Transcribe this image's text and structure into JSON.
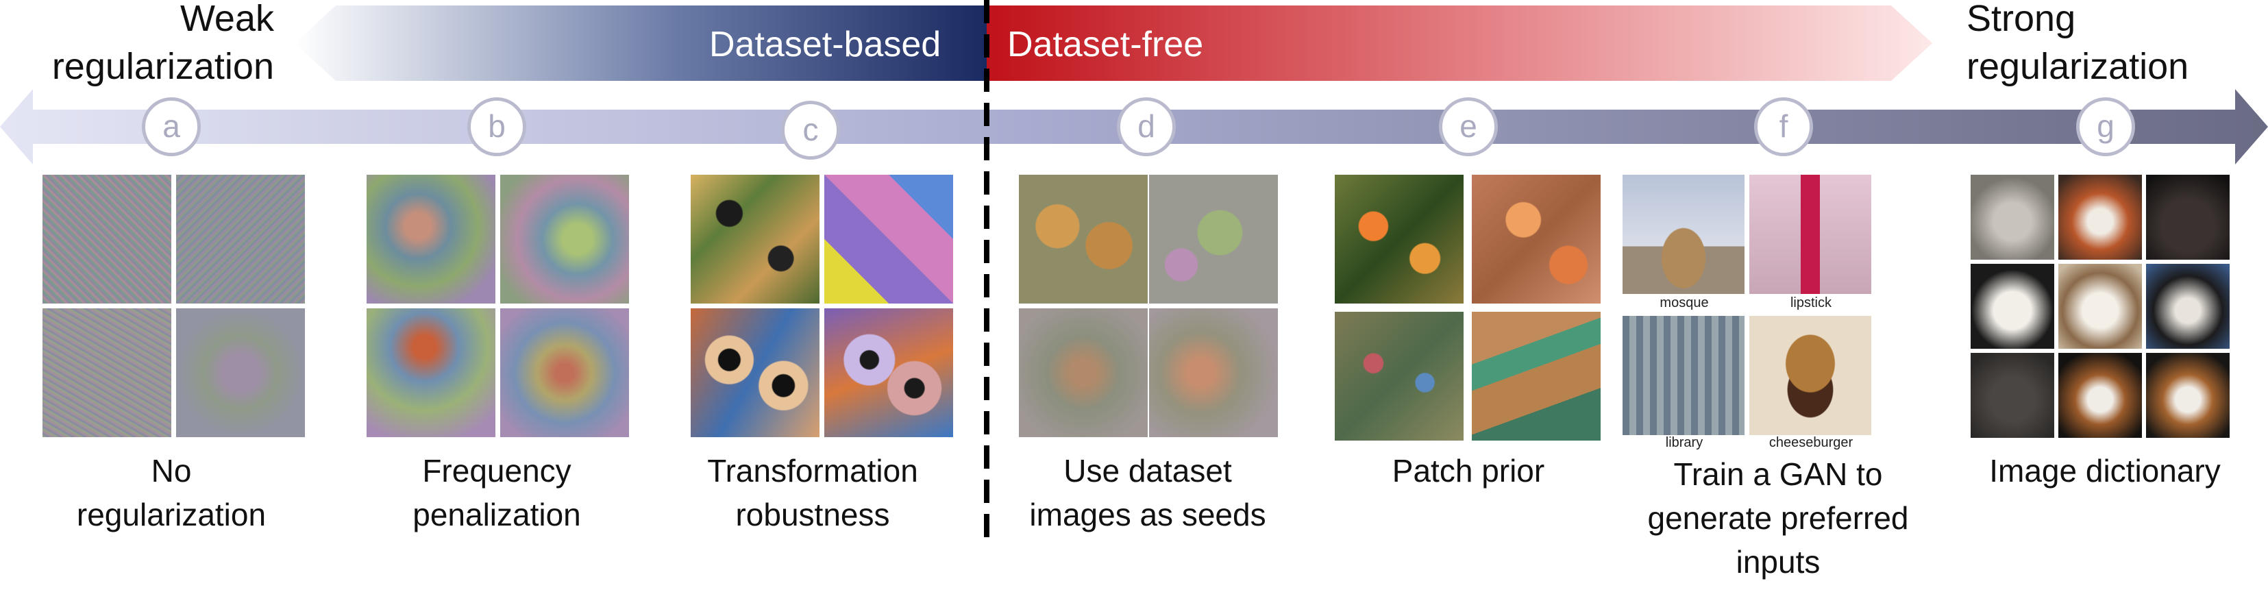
{
  "ends": {
    "weak": "Weak regularization",
    "strong": "Strong regularization"
  },
  "bands": {
    "left": "Dataset-based",
    "right": "Dataset-free"
  },
  "methods": [
    {
      "letter": "a",
      "caption": [
        "No",
        "regularization"
      ]
    },
    {
      "letter": "b",
      "caption": [
        "Frequency",
        "penalization"
      ]
    },
    {
      "letter": "c",
      "caption": [
        "Transformation",
        "robustness"
      ]
    },
    {
      "letter": "d",
      "caption": [
        "Use dataset",
        "images as seeds"
      ]
    },
    {
      "letter": "e",
      "caption": [
        "Patch prior"
      ]
    },
    {
      "letter": "f",
      "caption": [
        "Train a GAN to",
        "generate preferred",
        "inputs"
      ]
    },
    {
      "letter": "g",
      "caption": [
        "Image dictionary"
      ]
    }
  ],
  "gan_labels": [
    "mosque",
    "lipstick",
    "library",
    "cheeseburger"
  ],
  "colors": {
    "dataset_based": "#1f3068",
    "dataset_free": "#c0161c",
    "axis": "#9fa0bf"
  }
}
